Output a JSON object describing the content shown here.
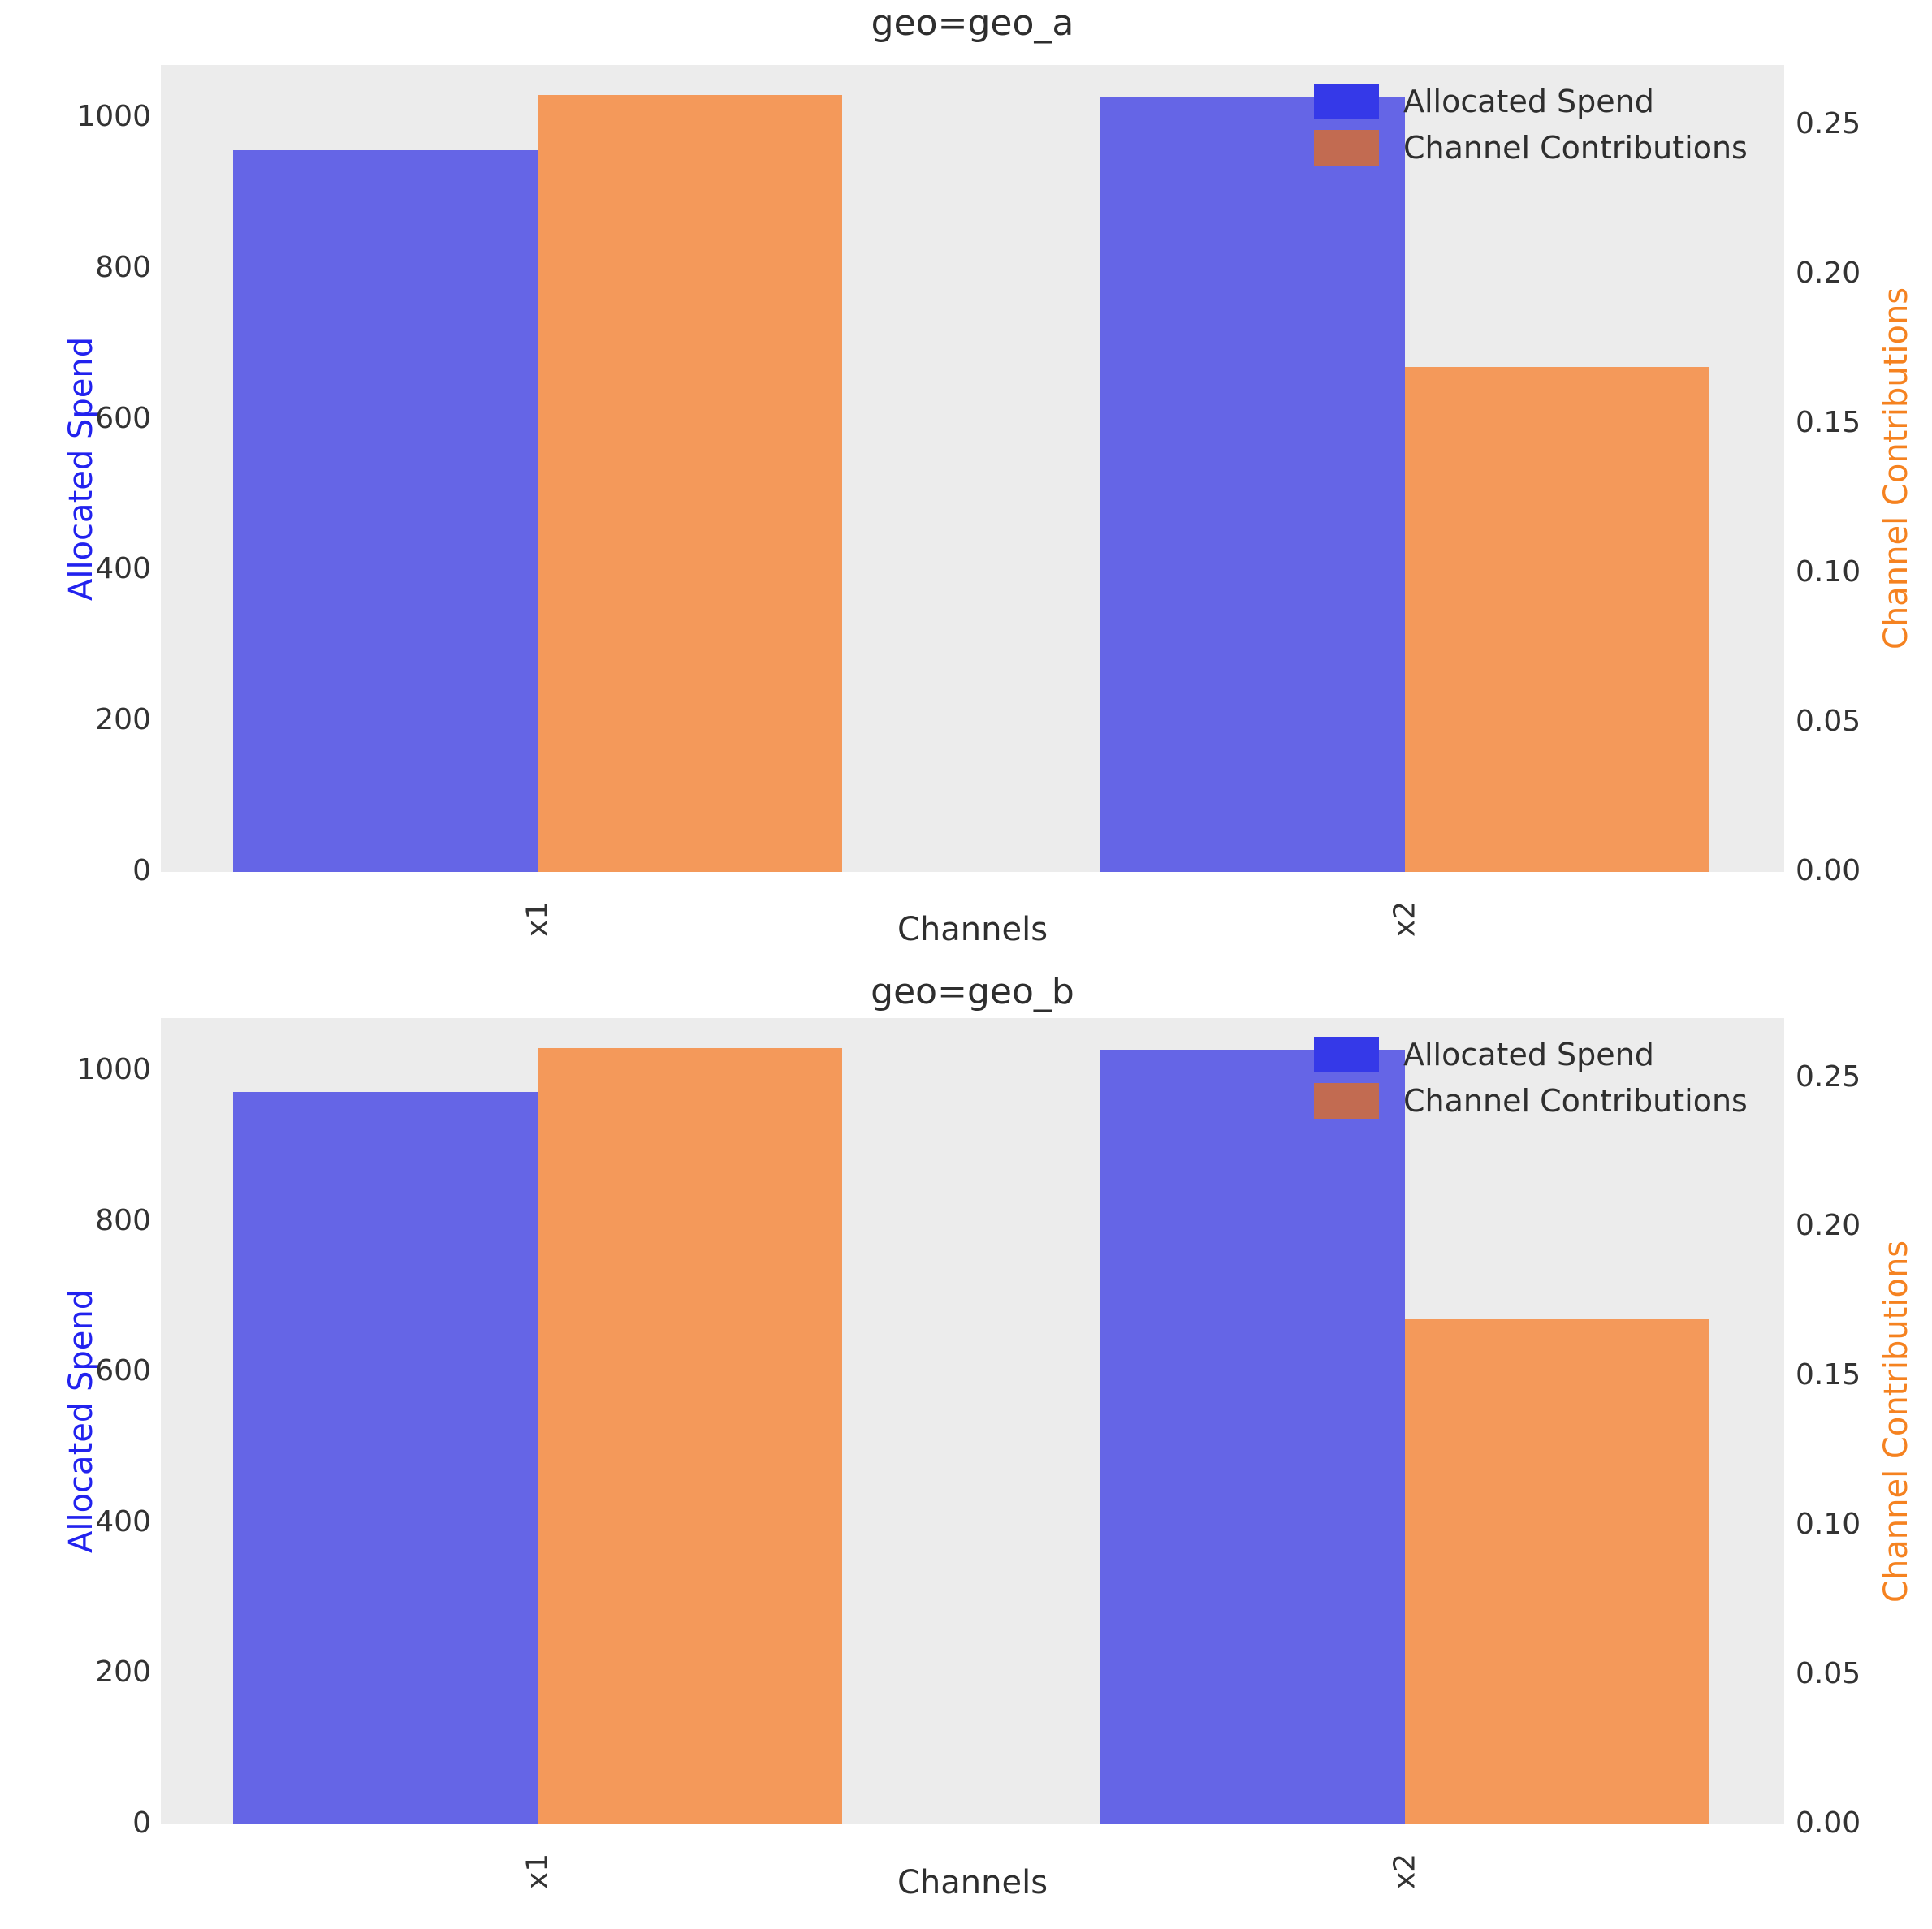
{
  "figure": {
    "background": "#ffffff"
  },
  "colors": {
    "plot_background": "#ececec",
    "bar_spend": "#6565e6",
    "bar_contrib": "#f4995a",
    "legend_swatch_spend": "#3539e8",
    "legend_swatch_contrib": "#c26b51",
    "ylabel_left_color": "#2222ee",
    "ylabel_right_color": "#f58220",
    "tick_text": "#333333",
    "title_text": "#2e2e2e"
  },
  "legend": {
    "items": [
      {
        "label": "Allocated Spend",
        "swatch": "legend_swatch_spend"
      },
      {
        "label": "Channel Contributions",
        "swatch": "legend_swatch_contrib"
      }
    ],
    "position": "upper right"
  },
  "chart_data": [
    {
      "type": "bar",
      "title": "geo=geo_a",
      "xlabel": "Channels",
      "ylabel_left": "Allocated Spend",
      "ylabel_right": "Channel Contributions",
      "categories": [
        "x1",
        "x2"
      ],
      "series": [
        {
          "name": "Allocated Spend",
          "axis": "left",
          "values": [
            957,
            1028
          ]
        },
        {
          "name": "Channel Contributions",
          "axis": "right",
          "values": [
            0.26,
            0.169
          ]
        }
      ],
      "left_ticks": {
        "labels": [
          "0",
          "200",
          "400",
          "600",
          "800",
          "1000"
        ],
        "values": [
          0,
          200,
          400,
          600,
          800,
          1000
        ]
      },
      "right_ticks": {
        "labels": [
          "0.00",
          "0.05",
          "0.10",
          "0.15",
          "0.20",
          "0.25"
        ],
        "values": [
          0,
          0.05,
          0.1,
          0.15,
          0.2,
          0.25
        ]
      },
      "ylim_left": [
        0,
        1070
      ],
      "ylim_right": [
        0,
        0.27
      ],
      "grid": false,
      "legend_position": "upper right"
    },
    {
      "type": "bar",
      "title": "geo=geo_b",
      "xlabel": "Channels",
      "ylabel_left": "Allocated Spend",
      "ylabel_right": "Channel Contributions",
      "categories": [
        "x1",
        "x2"
      ],
      "series": [
        {
          "name": "Allocated Spend",
          "axis": "left",
          "values": [
            972,
            1028
          ]
        },
        {
          "name": "Channel Contributions",
          "axis": "right",
          "values": [
            0.26,
            0.169
          ]
        }
      ],
      "left_ticks": {
        "labels": [
          "0",
          "200",
          "400",
          "600",
          "800",
          "1000"
        ],
        "values": [
          0,
          200,
          400,
          600,
          800,
          1000
        ]
      },
      "right_ticks": {
        "labels": [
          "0.00",
          "0.05",
          "0.10",
          "0.15",
          "0.20",
          "0.25"
        ],
        "values": [
          0,
          0.05,
          0.1,
          0.15,
          0.2,
          0.25
        ]
      },
      "ylim_left": [
        0,
        1070
      ],
      "ylim_right": [
        0,
        0.27
      ],
      "grid": false,
      "legend_position": "upper right"
    }
  ]
}
